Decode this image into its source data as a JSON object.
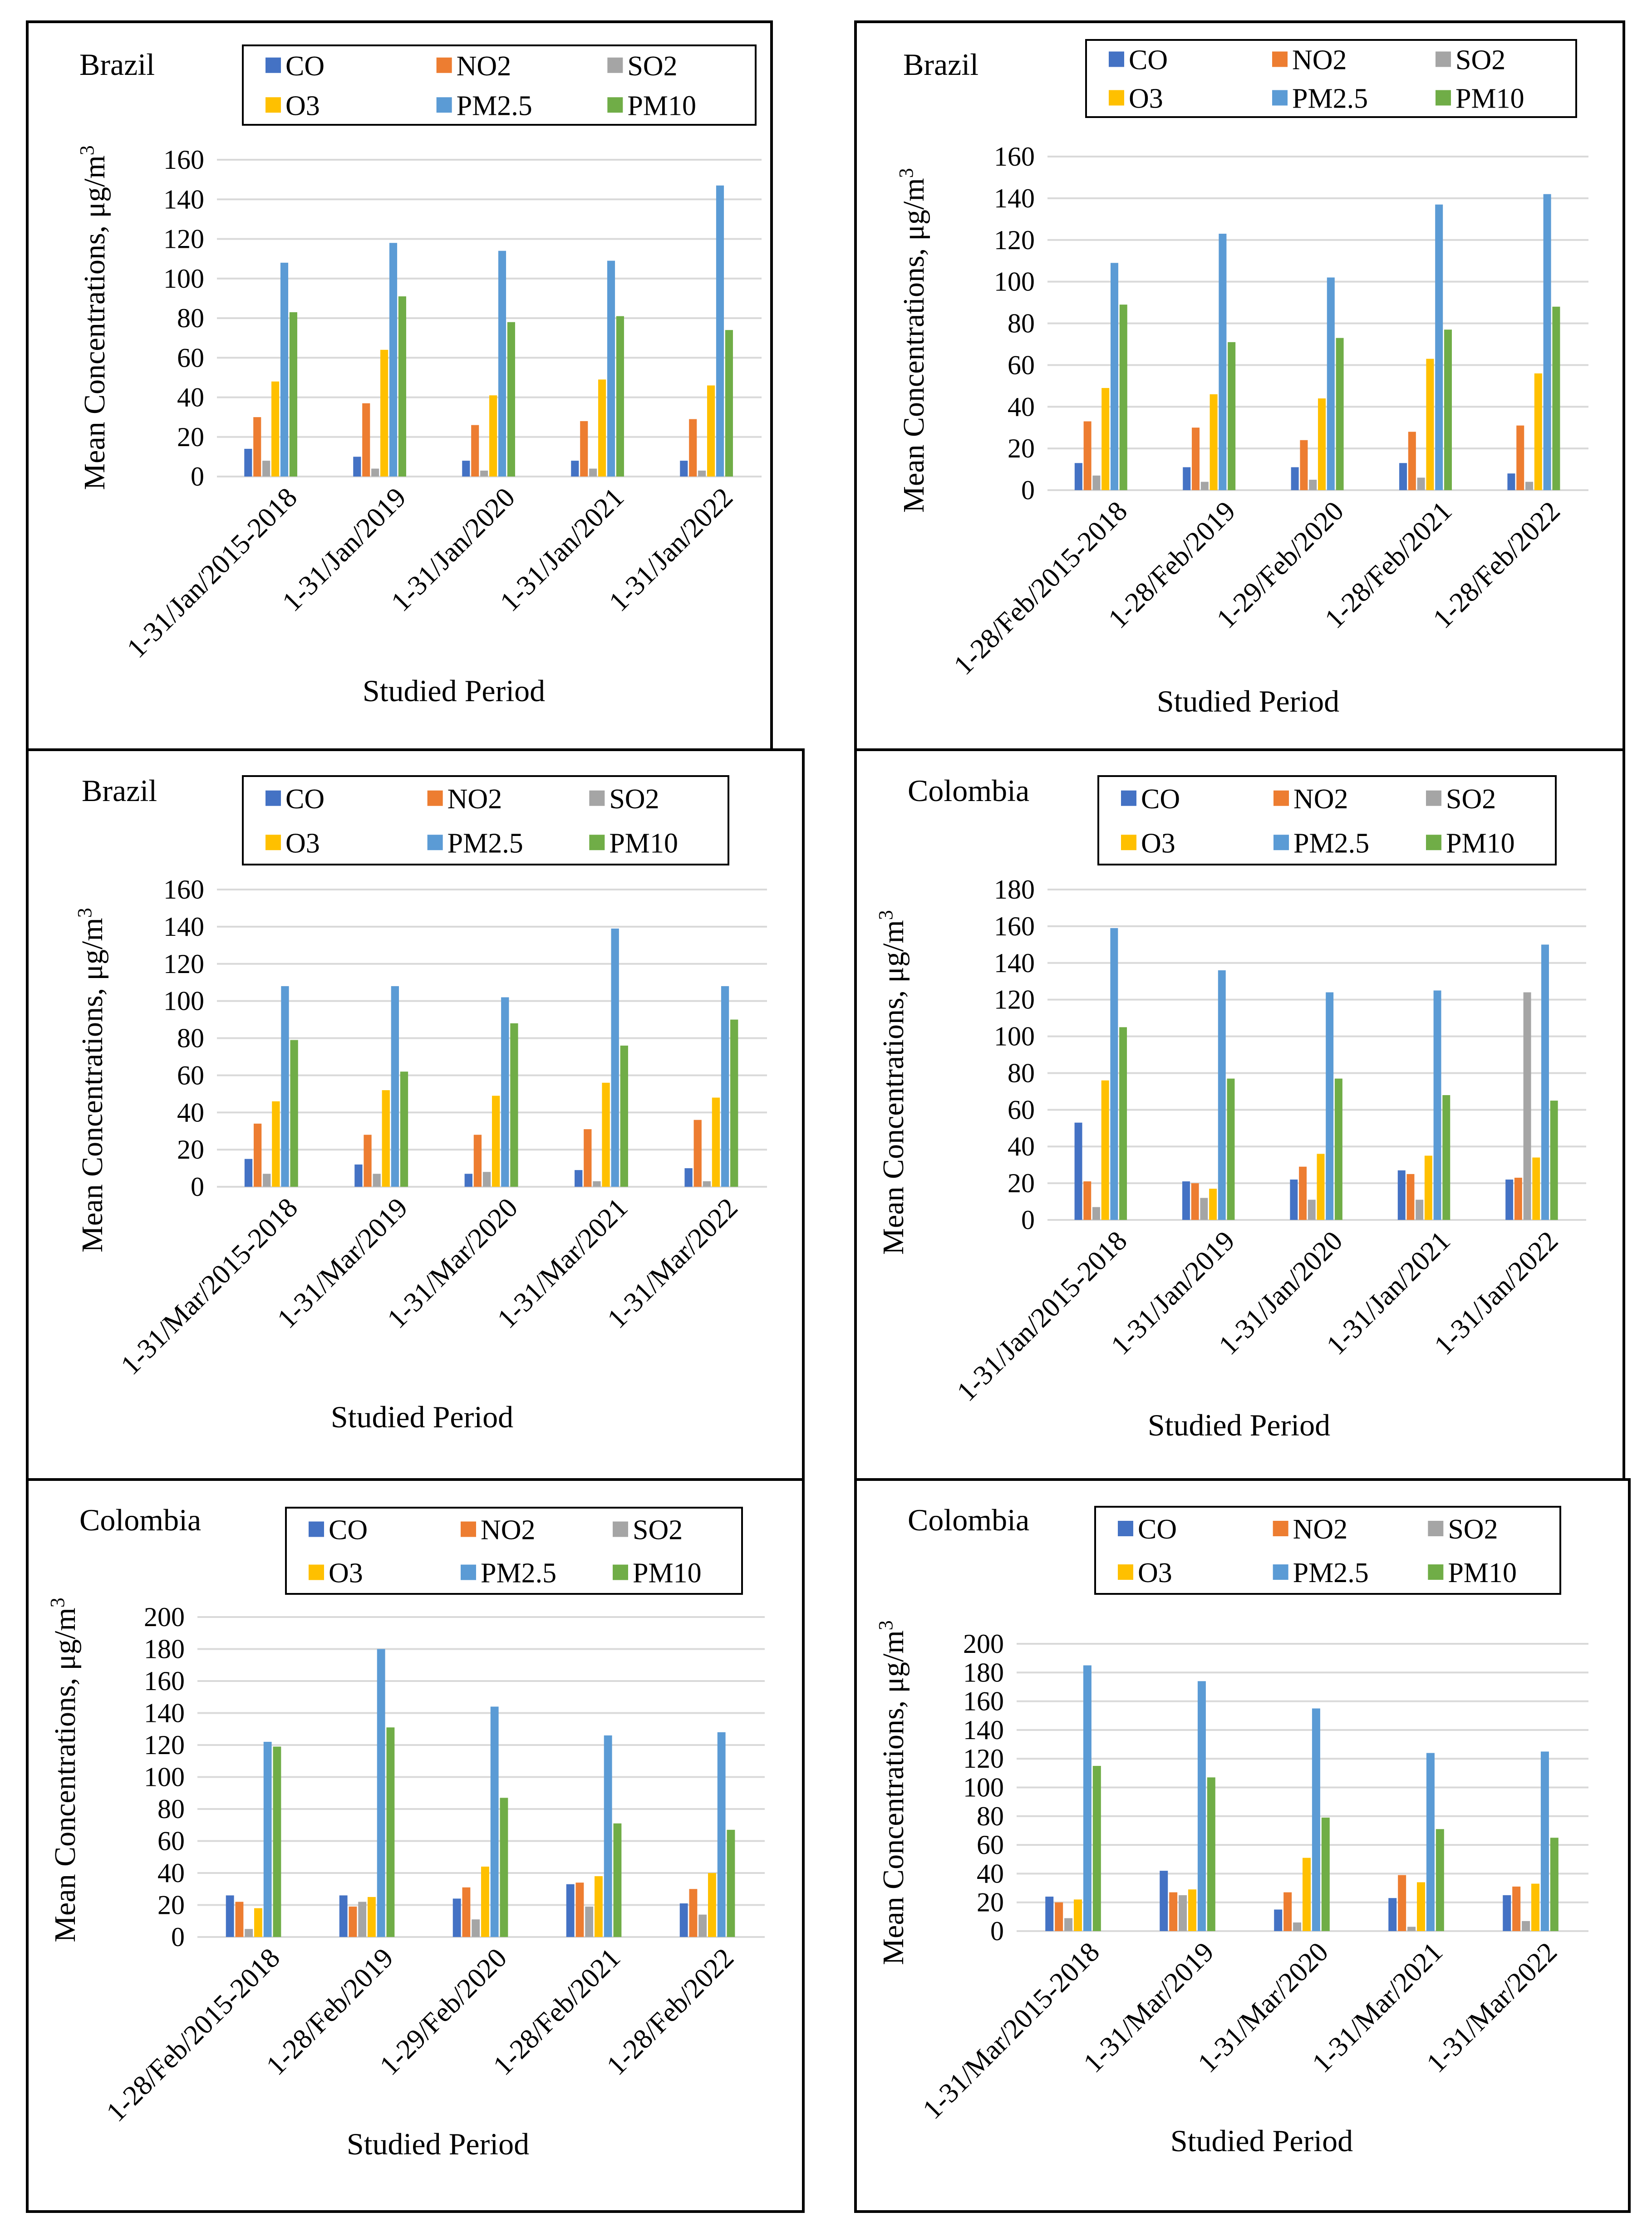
{
  "colors": {
    "CO": "#4472C4",
    "NO2": "#ED7D31",
    "SO2": "#A5A5A5",
    "O3": "#FFC000",
    "PM2.5": "#5B9BD5",
    "PM10": "#70AD47",
    "grid": "#D9D9D9",
    "frame": "#000000"
  },
  "chart_data": [
    {
      "type": "bar",
      "title": "Brazil",
      "xlabel": "Studied Period",
      "ylabel": "Mean Concentrations, μg/m",
      "ylabel_sup": "3",
      "ylim": [
        0,
        160
      ],
      "yticks": [
        "0",
        "20",
        "40",
        "60",
        "80",
        "100",
        "120",
        "140",
        "160"
      ],
      "legend": [
        "CO",
        "NO2",
        "SO2",
        "O3",
        "PM2.5",
        "PM10"
      ],
      "categories": [
        "1-31/Jan/2015-2018",
        "1-31/Jan/2019",
        "1-31/Jan/2020",
        "1-31/Jan/2021",
        "1-31/Jan/2022"
      ],
      "series": [
        {
          "name": "CO",
          "values": [
            14,
            10,
            8,
            8,
            8
          ]
        },
        {
          "name": "NO2",
          "values": [
            30,
            37,
            26,
            28,
            29
          ]
        },
        {
          "name": "SO2",
          "values": [
            8,
            4,
            3,
            4,
            3
          ]
        },
        {
          "name": "O3",
          "values": [
            48,
            64,
            41,
            49,
            46
          ]
        },
        {
          "name": "PM2.5",
          "values": [
            108,
            118,
            114,
            109,
            147
          ]
        },
        {
          "name": "PM10",
          "values": [
            83,
            91,
            78,
            81,
            74
          ]
        }
      ]
    },
    {
      "type": "bar",
      "title": "Brazil",
      "xlabel": "Studied Period",
      "ylabel": "Mean Concentrations, μg/m",
      "ylabel_sup": "3",
      "ylim": [
        0,
        160
      ],
      "yticks": [
        "0",
        "20",
        "40",
        "60",
        "80",
        "100",
        "120",
        "140",
        "160"
      ],
      "legend": [
        "CO",
        "NO2",
        "SO2",
        "O3",
        "PM2.5",
        "PM10"
      ],
      "categories": [
        "1-28/Feb/2015-2018",
        "1-28/Feb/2019",
        "1-29/Feb/2020",
        "1-28/Feb/2021",
        "1-28/Feb/2022"
      ],
      "series": [
        {
          "name": "CO",
          "values": [
            13,
            11,
            11,
            13,
            8
          ]
        },
        {
          "name": "NO2",
          "values": [
            33,
            30,
            24,
            28,
            31
          ]
        },
        {
          "name": "SO2",
          "values": [
            7,
            4,
            5,
            6,
            4
          ]
        },
        {
          "name": "O3",
          "values": [
            49,
            46,
            44,
            63,
            56
          ]
        },
        {
          "name": "PM2.5",
          "values": [
            109,
            123,
            102,
            137,
            142
          ]
        },
        {
          "name": "PM10",
          "values": [
            89,
            71,
            73,
            77,
            88
          ]
        }
      ]
    },
    {
      "type": "bar",
      "title": "Brazil",
      "xlabel": "Studied Period",
      "ylabel": "Mean Concentrations, μg/m",
      "ylabel_sup": "3",
      "ylim": [
        0,
        160
      ],
      "yticks": [
        "0",
        "20",
        "40",
        "60",
        "80",
        "100",
        "120",
        "140",
        "160"
      ],
      "legend": [
        "CO",
        "NO2",
        "SO2",
        "O3",
        "PM2.5",
        "PM10"
      ],
      "categories": [
        "1-31/Mar/2015-2018",
        "1-31/Mar/2019",
        "1-31/Mar/2020",
        "1-31/Mar/2021",
        "1-31/Mar/2022"
      ],
      "series": [
        {
          "name": "CO",
          "values": [
            15,
            12,
            7,
            9,
            10
          ]
        },
        {
          "name": "NO2",
          "values": [
            34,
            28,
            28,
            31,
            36
          ]
        },
        {
          "name": "SO2",
          "values": [
            7,
            7,
            8,
            3,
            3
          ]
        },
        {
          "name": "O3",
          "values": [
            46,
            52,
            49,
            56,
            48
          ]
        },
        {
          "name": "PM2.5",
          "values": [
            108,
            108,
            102,
            139,
            108
          ]
        },
        {
          "name": "PM10",
          "values": [
            79,
            62,
            88,
            76,
            90
          ]
        }
      ]
    },
    {
      "type": "bar",
      "title": "Colombia",
      "xlabel": "Studied Period",
      "ylabel": "Mean Concentrations, μg/m",
      "ylabel_sup": "3",
      "ylim": [
        0,
        180
      ],
      "yticks": [
        "0",
        "20",
        "40",
        "60",
        "80",
        "100",
        "120",
        "140",
        "160",
        "180"
      ],
      "legend": [
        "CO",
        "NO2",
        "SO2",
        "O3",
        "PM2.5",
        "PM10"
      ],
      "categories": [
        "1-31/Jan/2015-2018",
        "1-31/Jan/2019",
        "1-31/Jan/2020",
        "1-31/Jan/2021",
        "1-31/Jan/2022"
      ],
      "series": [
        {
          "name": "CO",
          "values": [
            53,
            21,
            22,
            27,
            22
          ]
        },
        {
          "name": "NO2",
          "values": [
            21,
            20,
            29,
            25,
            23
          ]
        },
        {
          "name": "SO2",
          "values": [
            7,
            12,
            11,
            11,
            124
          ]
        },
        {
          "name": "O3",
          "values": [
            76,
            17,
            36,
            35,
            34
          ]
        },
        {
          "name": "PM2.5",
          "values": [
            159,
            136,
            124,
            125,
            150
          ]
        },
        {
          "name": "PM10",
          "values": [
            105,
            77,
            77,
            68,
            65
          ]
        }
      ]
    },
    {
      "type": "bar",
      "title": "Colombia",
      "xlabel": "Studied Period",
      "ylabel": "Mean Concentrations, μg/m",
      "ylabel_sup": "3",
      "ylim": [
        0,
        200
      ],
      "yticks": [
        "0",
        "20",
        "40",
        "60",
        "80",
        "100",
        "120",
        "140",
        "160",
        "180",
        "200"
      ],
      "legend": [
        "CO",
        "NO2",
        "SO2",
        "O3",
        "PM2.5",
        "PM10"
      ],
      "categories": [
        "1-28/Feb/2015-2018",
        "1-28/Feb/2019",
        "1-29/Feb/2020",
        "1-28/Feb/2021",
        "1-28/Feb/2022"
      ],
      "series": [
        {
          "name": "CO",
          "values": [
            26,
            26,
            24,
            33,
            21
          ]
        },
        {
          "name": "NO2",
          "values": [
            22,
            19,
            31,
            34,
            30
          ]
        },
        {
          "name": "SO2",
          "values": [
            5,
            22,
            11,
            19,
            14
          ]
        },
        {
          "name": "O3",
          "values": [
            18,
            25,
            44,
            38,
            40
          ]
        },
        {
          "name": "PM2.5",
          "values": [
            122,
            180,
            144,
            126,
            128
          ]
        },
        {
          "name": "PM10",
          "values": [
            119,
            131,
            87,
            71,
            67
          ]
        }
      ]
    },
    {
      "type": "bar",
      "title": "Colombia",
      "xlabel": "Studied Period",
      "ylabel": "Mean Concentrations, μg/m",
      "ylabel_sup": "3",
      "ylim": [
        0,
        200
      ],
      "yticks": [
        "0",
        "20",
        "40",
        "60",
        "80",
        "100",
        "120",
        "140",
        "160",
        "180",
        "200"
      ],
      "legend": [
        "CO",
        "NO2",
        "SO2",
        "O3",
        "PM2.5",
        "PM10"
      ],
      "categories": [
        "1-31/Mar/2015-2018",
        "1-31/Mar/2019",
        "1-31/Mar/2020",
        "1-31/Mar/2021",
        "1-31/Mar/2022"
      ],
      "series": [
        {
          "name": "CO",
          "values": [
            24,
            42,
            15,
            23,
            25
          ]
        },
        {
          "name": "NO2",
          "values": [
            20,
            27,
            27,
            39,
            31
          ]
        },
        {
          "name": "SO2",
          "values": [
            9,
            25,
            6,
            3,
            7
          ]
        },
        {
          "name": "O3",
          "values": [
            22,
            29,
            51,
            34,
            33
          ]
        },
        {
          "name": "PM2.5",
          "values": [
            185,
            174,
            155,
            124,
            125
          ]
        },
        {
          "name": "PM10",
          "values": [
            115,
            107,
            79,
            71,
            65
          ]
        }
      ]
    }
  ]
}
